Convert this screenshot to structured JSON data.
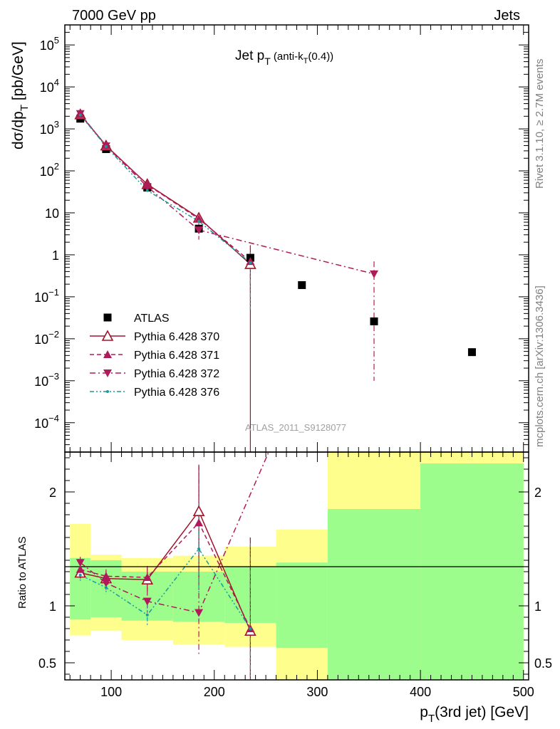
{
  "header": {
    "left": "7000 GeV pp",
    "right": "Jets",
    "side_top": "Rivet 3.1.10, ≥ 2.7M events",
    "side_bottom": "mcplots.cern.ch [arXiv:1306.3436]",
    "analysis_id": "ATLAS_2011_S9128077"
  },
  "chart_data": [
    {
      "type": "scatter",
      "panel": "main",
      "title": "Jet p_T (anti-k_T(0.4))",
      "xlabel": "p_T(3rd jet) [GeV]",
      "ylabel": "dσ/dp_T [pb/GeV]",
      "xlim": [
        55,
        505
      ],
      "ylim": [
        2e-05,
        300000
      ],
      "yscale": "log",
      "legend_position": "lower-left",
      "y_ticks": [
        {
          "v": 100000,
          "base": "10",
          "exp": "5"
        },
        {
          "v": 10000,
          "base": "10",
          "exp": "4"
        },
        {
          "v": 1000,
          "base": "10",
          "exp": "3"
        },
        {
          "v": 100,
          "base": "10",
          "exp": "2"
        },
        {
          "v": 10,
          "base": "10",
          "exp": ""
        },
        {
          "v": 1,
          "base": "1",
          "exp": ""
        },
        {
          "v": 0.1,
          "base": "10",
          "exp": "−1"
        },
        {
          "v": 0.01,
          "base": "10",
          "exp": "−2"
        },
        {
          "v": 0.001,
          "base": "10",
          "exp": "−3"
        },
        {
          "v": 0.0001,
          "base": "10",
          "exp": "−4"
        }
      ],
      "series": [
        {
          "name": "ATLAS",
          "color": "#000000",
          "marker": "square",
          "line": "none",
          "x": [
            70,
            95,
            135,
            185,
            235,
            285,
            355,
            450
          ],
          "y": [
            1750,
            330,
            40,
            4.2,
            0.85,
            0.19,
            0.026,
            0.0048
          ]
        },
        {
          "name": "Pythia 6.428 370",
          "color": "#a0142a",
          "marker": "triangle-open",
          "line": "solid",
          "x": [
            70,
            95,
            135,
            185,
            235
          ],
          "y": [
            2200,
            400,
            48,
            7.6,
            0.6
          ],
          "err": [
            [
              0,
              0
            ],
            [
              0,
              0
            ],
            [
              0,
              0
            ],
            [
              1.5,
              1.5
            ],
            [
              0.6,
              1.0
            ]
          ]
        },
        {
          "name": "Pythia 6.428 371",
          "color": "#b01a5a",
          "marker": "triangle-up",
          "line": "dashed",
          "x": [
            70,
            95,
            135,
            185,
            235
          ],
          "y": [
            2200,
            400,
            47,
            7.2,
            0.7
          ],
          "err": [
            [
              0,
              0
            ],
            [
              0,
              0
            ],
            [
              0,
              0
            ],
            [
              1.5,
              1.5
            ],
            [
              0.6,
              1.0
            ]
          ]
        },
        {
          "name": "Pythia 6.428 372",
          "color": "#b01a5a",
          "marker": "triangle-down",
          "line": "dashdot",
          "x": [
            70,
            95,
            135,
            185,
            355
          ],
          "y": [
            2300,
            390,
            42,
            3.9,
            0.35
          ],
          "err": [
            [
              0,
              0
            ],
            [
              0,
              0
            ],
            [
              0,
              0
            ],
            [
              1.6,
              1.8
            ],
            [
              0.349,
              0.35
            ]
          ]
        },
        {
          "name": "Pythia 6.428 376",
          "color": "#1a9a9a",
          "marker": "star",
          "line": "dashdot-dots",
          "x": [
            70,
            95,
            135,
            185,
            235
          ],
          "y": [
            2150,
            380,
            34,
            6.3,
            0.65
          ],
          "err": [
            [
              0,
              0
            ],
            [
              0,
              0
            ],
            [
              0,
              0
            ],
            [
              1.2,
              1.2
            ],
            [
              0.6,
              0.5
            ]
          ]
        }
      ]
    },
    {
      "type": "line",
      "panel": "ratio",
      "ylabel": "Ratio to ATLAS",
      "xlabel": "p_T(3rd jet) [GeV]",
      "xlim": [
        55,
        505
      ],
      "ylim": [
        0.35,
        2.35
      ],
      "y_ticks": [
        0.5,
        1,
        2
      ],
      "x_ticks": [
        100,
        200,
        300,
        400,
        500
      ],
      "reference": 1,
      "bands": {
        "edges": [
          60,
          80,
          110,
          160,
          210,
          260,
          310,
          400,
          500
        ],
        "green_lo": [
          0.88,
          0.9,
          0.87,
          0.86,
          0.85,
          0.63,
          0.0,
          0.0
        ],
        "green_hi": [
          1.42,
          1.4,
          1.3,
          1.3,
          1.35,
          1.38,
          1.85,
          2.25
        ],
        "yellow_lo": [
          0.74,
          0.78,
          0.7,
          0.66,
          0.64,
          0.0,
          0.0,
          0.0
        ],
        "yellow_hi": [
          1.72,
          1.45,
          1.42,
          1.44,
          1.52,
          1.67,
          2.6,
          2.6
        ],
        "green_color": "#9cfd8c",
        "yellow_color": "#fefe8c"
      },
      "series": [
        {
          "name": "Pythia 6.428 370",
          "color": "#a0142a",
          "marker": "triangle-open",
          "line": "solid",
          "x": [
            70,
            95,
            135,
            185,
            235
          ],
          "y": [
            1.29,
            1.24,
            1.23,
            1.83,
            0.78
          ],
          "err": [
            [
              0.05,
              0.05
            ],
            [
              0.06,
              0.06
            ],
            [
              0.1,
              0.1
            ],
            [
              0.6,
              0.4
            ],
            [
              0.43,
              0.82
            ]
          ]
        },
        {
          "name": "Pythia 6.428 371",
          "color": "#b01a5a",
          "marker": "triangle-up",
          "line": "dashed",
          "x": [
            70,
            95,
            135,
            185,
            235
          ],
          "y": [
            1.32,
            1.26,
            1.25,
            1.73,
            0.8
          ],
          "err": [
            [
              0.05,
              0.05
            ],
            [
              0.06,
              0.06
            ],
            [
              0.1,
              0.1
            ],
            [
              0.5,
              0.5
            ],
            [
              0.45,
              0.8
            ]
          ]
        },
        {
          "name": "Pythia 6.428 372",
          "color": "#b01a5a",
          "marker": "triangle-down",
          "line": "dashdot",
          "x": [
            70,
            95,
            135,
            185,
            260
          ],
          "y": [
            1.38,
            1.2,
            1.04,
            0.94,
            2.5
          ],
          "err": [
            [
              0.05,
              0.05
            ],
            [
              0.06,
              0.06
            ],
            [
              0.1,
              0.1
            ],
            [
              0.38,
              1.3
            ],
            [
              0,
              0
            ]
          ]
        },
        {
          "name": "Pythia 6.428 376",
          "color": "#1a9a9a",
          "marker": "star",
          "line": "dashdot-dots",
          "x": [
            70,
            95,
            135,
            185,
            235
          ],
          "y": [
            1.27,
            1.16,
            0.92,
            1.5,
            0.8
          ],
          "err": [
            [
              0.05,
              0.05
            ],
            [
              0.06,
              0.06
            ],
            [
              0.1,
              0.1
            ],
            [
              0.4,
              0.4
            ],
            [
              0.45,
              0.75
            ]
          ]
        }
      ]
    }
  ]
}
